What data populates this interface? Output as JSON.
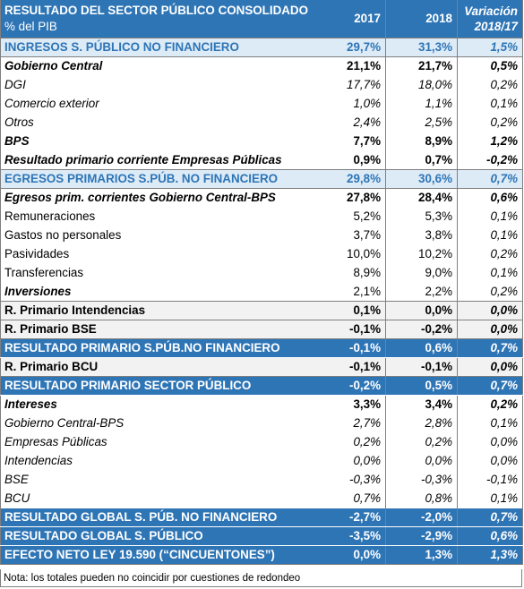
{
  "header": {
    "title": "RESULTADO DEL SECTOR PÚBLICO CONSOLIDADO",
    "subtitle": "% del PIB",
    "col_2017": "2017",
    "col_2018": "2018",
    "col_var_line1": "Variación",
    "col_var_line2": "2018/17"
  },
  "rows": [
    {
      "label": "INGRESOS S. PÚBLICO NO FINANCIERO",
      "v2017": "29,7%",
      "v2018": "31,3%",
      "var": "1,5%"
    },
    {
      "label": "Gobierno Central",
      "v2017": "21,1%",
      "v2018": "21,7%",
      "var": "0,5%"
    },
    {
      "label": "DGI",
      "v2017": "17,7%",
      "v2018": "18,0%",
      "var": "0,2%"
    },
    {
      "label": "Comercio exterior",
      "v2017": "1,0%",
      "v2018": "1,1%",
      "var": "0,1%"
    },
    {
      "label": "Otros",
      "v2017": "2,4%",
      "v2018": "2,5%",
      "var": "0,2%"
    },
    {
      "label": "BPS",
      "v2017": "7,7%",
      "v2018": "8,9%",
      "var": "1,2%"
    },
    {
      "label": "Resultado primario corriente Empresas Públicas",
      "v2017": "0,9%",
      "v2018": "0,7%",
      "var": "-0,2%"
    },
    {
      "label": "EGRESOS PRIMARIOS S.PÚB. NO FINANCIERO",
      "v2017": "29,8%",
      "v2018": "30,6%",
      "var": "0,7%"
    },
    {
      "label": "Egresos prim. corrientes Gobierno Central-BPS",
      "v2017": "27,8%",
      "v2018": "28,4%",
      "var": "0,6%"
    },
    {
      "label": "Remuneraciones",
      "v2017": "5,2%",
      "v2018": "5,3%",
      "var": "0,1%"
    },
    {
      "label": "Gastos no personales",
      "v2017": "3,7%",
      "v2018": "3,8%",
      "var": "0,1%"
    },
    {
      "label": "Pasividades",
      "v2017": "10,0%",
      "v2018": "10,2%",
      "var": "0,2%"
    },
    {
      "label": "Transferencias",
      "v2017": "8,9%",
      "v2018": "9,0%",
      "var": "0,1%"
    },
    {
      "label": "Inversiones",
      "v2017": "2,1%",
      "v2018": "2,2%",
      "var": "0,2%"
    },
    {
      "label": "R. Primario Intendencias",
      "v2017": "0,1%",
      "v2018": "0,0%",
      "var": "0,0%"
    },
    {
      "label": "R. Primario BSE",
      "v2017": "-0,1%",
      "v2018": "-0,2%",
      "var": "0,0%"
    },
    {
      "label": "RESULTADO PRIMARIO S.PÚB.NO FINANCIERO",
      "v2017": "-0,1%",
      "v2018": "0,6%",
      "var": "0,7%"
    },
    {
      "label": "R. Primario BCU",
      "v2017": "-0,1%",
      "v2018": "-0,1%",
      "var": "0,0%"
    },
    {
      "label": "RESULTADO PRIMARIO SECTOR PÚBLICO",
      "v2017": "-0,2%",
      "v2018": "0,5%",
      "var": "0,7%"
    },
    {
      "label": "Intereses",
      "v2017": "3,3%",
      "v2018": "3,4%",
      "var": "0,2%"
    },
    {
      "label": "Gobierno Central-BPS",
      "v2017": "2,7%",
      "v2018": "2,8%",
      "var": "0,1%"
    },
    {
      "label": "Empresas Públicas",
      "v2017": "0,2%",
      "v2018": "0,2%",
      "var": "0,0%"
    },
    {
      "label": "Intendencias",
      "v2017": "0,0%",
      "v2018": "0,0%",
      "var": "0,0%"
    },
    {
      "label": "BSE",
      "v2017": "-0,3%",
      "v2018": "-0,3%",
      "var": "-0,1%"
    },
    {
      "label": "BCU",
      "v2017": "0,7%",
      "v2018": "0,8%",
      "var": "0,1%"
    },
    {
      "label": "RESULTADO GLOBAL S. PÚB. NO FINANCIERO",
      "v2017": "-2,7%",
      "v2018": "-2,0%",
      "var": "0,7%"
    },
    {
      "label": "RESULTADO GLOBAL S. PÚBLICO",
      "v2017": "-3,5%",
      "v2018": "-2,9%",
      "var": "0,6%"
    },
    {
      "label": "EFECTO NETO LEY 19.590 (“CINCUENTONES”)",
      "v2017": "0,0%",
      "v2018": "1,3%",
      "var": "1,3%"
    }
  ],
  "note": "Nota: los totales pueden no coincidir por cuestiones de redondeo",
  "colors": {
    "header_blue": "#2e75b6",
    "light_blue": "#ddebf7",
    "gray": "#f2f2f2"
  }
}
